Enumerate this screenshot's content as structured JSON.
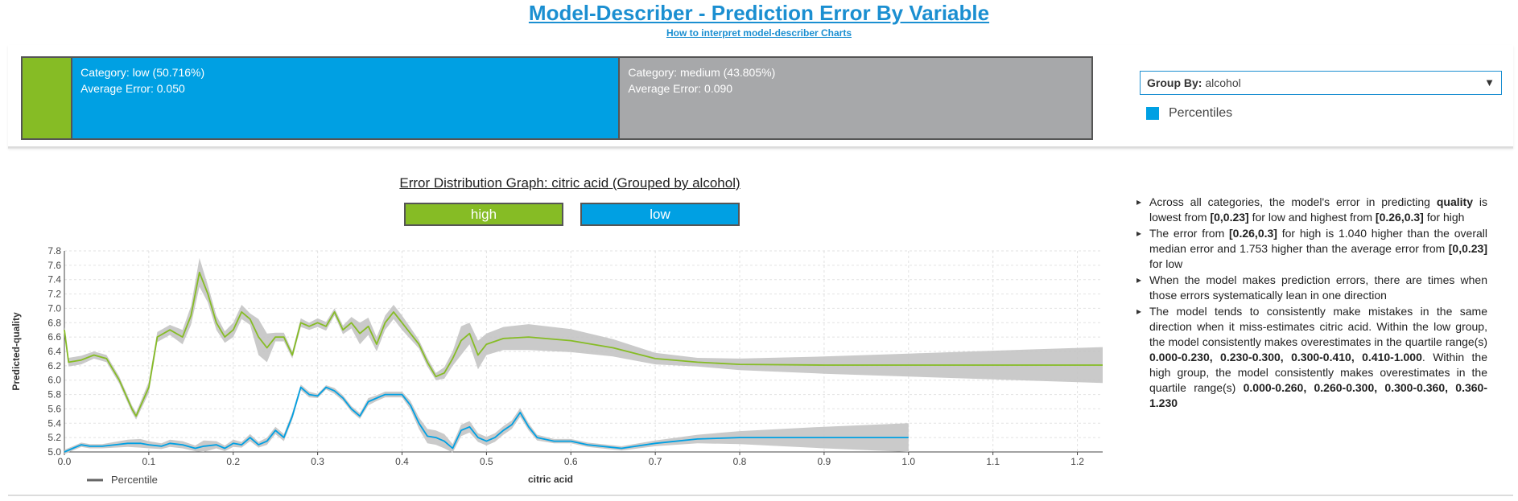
{
  "header": {
    "title": "Model-Describer - Prediction Error By Variable",
    "link": "How to interpret model-describer Charts"
  },
  "categories": [
    {
      "name": "high",
      "label": "",
      "error_label": "",
      "share": 4.479,
      "color": "#86bc25"
    },
    {
      "name": "low",
      "label": "Category: low (50.716%)",
      "error_label": "Average Error: 0.050",
      "share": 50.716,
      "color": "#00a0e3"
    },
    {
      "name": "medium",
      "label": "Category: medium (43.805%)",
      "error_label": "Average Error: 0.090",
      "share": 43.805,
      "color": "#a7a8aa"
    }
  ],
  "controls": {
    "groupby_label": "Group By:",
    "groupby_value": "alcohol",
    "percentiles_label": "Percentiles",
    "percentiles_color": "#00a0e3"
  },
  "chart_data": {
    "type": "line",
    "title": "Error Distribution Graph: citric acid (Grouped by alcohol)",
    "xlabel": "citric acid",
    "ylabel": "Predicted-quality",
    "xlim": [
      0.0,
      1.23
    ],
    "ylim": [
      5.0,
      7.8
    ],
    "xticks": [
      "0.0",
      "0.1",
      "0.2",
      "0.3",
      "0.4",
      "0.5",
      "0.6",
      "0.7",
      "0.8",
      "0.9",
      "1.0",
      "1.1",
      "1.2"
    ],
    "yticks": [
      "5.0",
      "5.2",
      "5.4",
      "5.6",
      "5.8",
      "6.0",
      "6.2",
      "6.4",
      "6.6",
      "6.8",
      "7.0",
      "7.2",
      "7.4",
      "7.6",
      "7.8"
    ],
    "grid": true,
    "legend": {
      "label": "Percentile",
      "placement": "bottom-left"
    },
    "series": [
      {
        "name": "high",
        "color": "#86bc25",
        "x": [
          0.0,
          0.005,
          0.02,
          0.035,
          0.05,
          0.065,
          0.08,
          0.085,
          0.1,
          0.11,
          0.125,
          0.14,
          0.15,
          0.16,
          0.17,
          0.18,
          0.19,
          0.2,
          0.21,
          0.22,
          0.23,
          0.24,
          0.25,
          0.26,
          0.27,
          0.28,
          0.29,
          0.3,
          0.31,
          0.32,
          0.33,
          0.34,
          0.35,
          0.36,
          0.37,
          0.38,
          0.39,
          0.4,
          0.41,
          0.42,
          0.43,
          0.44,
          0.45,
          0.46,
          0.47,
          0.48,
          0.49,
          0.5,
          0.52,
          0.55,
          0.6,
          0.65,
          0.7,
          0.75,
          0.8,
          0.9,
          1.0,
          1.1,
          1.23
        ],
        "y": [
          6.7,
          6.25,
          6.28,
          6.35,
          6.3,
          6.0,
          5.6,
          5.5,
          5.9,
          6.6,
          6.7,
          6.6,
          6.9,
          7.5,
          7.2,
          6.8,
          6.6,
          6.7,
          6.95,
          6.85,
          6.6,
          6.45,
          6.6,
          6.6,
          6.35,
          6.8,
          6.75,
          6.8,
          6.75,
          6.95,
          6.7,
          6.8,
          6.65,
          6.75,
          6.5,
          6.8,
          6.95,
          6.8,
          6.65,
          6.5,
          6.25,
          6.05,
          6.1,
          6.3,
          6.55,
          6.65,
          6.35,
          6.5,
          6.58,
          6.6,
          6.55,
          6.45,
          6.3,
          6.25,
          6.22,
          6.21,
          6.21,
          6.21,
          6.21
        ],
        "band": [
          0.04,
          0.06,
          0.06,
          0.05,
          0.05,
          0.05,
          0.05,
          0.05,
          0.08,
          0.07,
          0.07,
          0.1,
          0.13,
          0.2,
          0.12,
          0.1,
          0.08,
          0.1,
          0.1,
          0.08,
          0.25,
          0.2,
          0.06,
          0.06,
          0.05,
          0.06,
          0.05,
          0.06,
          0.06,
          0.05,
          0.06,
          0.08,
          0.15,
          0.12,
          0.1,
          0.1,
          0.1,
          0.1,
          0.08,
          0.06,
          0.06,
          0.05,
          0.08,
          0.1,
          0.2,
          0.15,
          0.2,
          0.15,
          0.16,
          0.18,
          0.16,
          0.12,
          0.08,
          0.06,
          0.08,
          0.12,
          0.16,
          0.2,
          0.25
        ]
      },
      {
        "name": "low",
        "color": "#00a0e3",
        "x": [
          0.0,
          0.01,
          0.02,
          0.03,
          0.045,
          0.06,
          0.075,
          0.09,
          0.1,
          0.115,
          0.125,
          0.14,
          0.155,
          0.165,
          0.18,
          0.19,
          0.2,
          0.21,
          0.22,
          0.23,
          0.24,
          0.25,
          0.26,
          0.27,
          0.28,
          0.29,
          0.3,
          0.31,
          0.32,
          0.33,
          0.34,
          0.35,
          0.36,
          0.37,
          0.38,
          0.39,
          0.4,
          0.41,
          0.42,
          0.43,
          0.44,
          0.45,
          0.46,
          0.47,
          0.48,
          0.49,
          0.5,
          0.51,
          0.52,
          0.53,
          0.54,
          0.55,
          0.56,
          0.58,
          0.6,
          0.62,
          0.66,
          0.7,
          0.75,
          0.8,
          0.9,
          1.0
        ],
        "y": [
          5.0,
          5.05,
          5.1,
          5.08,
          5.08,
          5.1,
          5.12,
          5.12,
          5.1,
          5.08,
          5.12,
          5.1,
          5.05,
          5.08,
          5.1,
          5.05,
          5.12,
          5.1,
          5.2,
          5.1,
          5.15,
          5.3,
          5.2,
          5.5,
          5.9,
          5.8,
          5.78,
          5.9,
          5.85,
          5.75,
          5.6,
          5.5,
          5.7,
          5.75,
          5.8,
          5.8,
          5.8,
          5.65,
          5.4,
          5.22,
          5.2,
          5.15,
          5.05,
          5.3,
          5.35,
          5.2,
          5.15,
          5.2,
          5.3,
          5.38,
          5.55,
          5.35,
          5.2,
          5.15,
          5.15,
          5.1,
          5.05,
          5.12,
          5.18,
          5.2,
          5.2,
          5.2
        ],
        "band": [
          0.03,
          0.03,
          0.03,
          0.03,
          0.03,
          0.04,
          0.05,
          0.06,
          0.05,
          0.04,
          0.05,
          0.05,
          0.04,
          0.08,
          0.05,
          0.04,
          0.05,
          0.04,
          0.05,
          0.04,
          0.05,
          0.05,
          0.05,
          0.05,
          0.04,
          0.04,
          0.03,
          0.03,
          0.04,
          0.04,
          0.04,
          0.04,
          0.05,
          0.04,
          0.04,
          0.04,
          0.04,
          0.06,
          0.08,
          0.1,
          0.1,
          0.1,
          0.06,
          0.08,
          0.08,
          0.06,
          0.06,
          0.06,
          0.06,
          0.06,
          0.06,
          0.05,
          0.04,
          0.03,
          0.03,
          0.03,
          0.03,
          0.04,
          0.06,
          0.09,
          0.15,
          0.2
        ]
      }
    ]
  },
  "notes": [
    {
      "parts": [
        {
          "t": "Across all categories, the model's error in predicting "
        },
        {
          "t": "quality",
          "b": true
        },
        {
          "t": " is lowest from "
        },
        {
          "t": "[0,0.23]",
          "b": true
        },
        {
          "t": " for low and highest from "
        },
        {
          "t": "[0.26,0.3]",
          "b": true
        },
        {
          "t": " for high"
        }
      ]
    },
    {
      "parts": [
        {
          "t": "The error from "
        },
        {
          "t": "[0.26,0.3]",
          "b": true
        },
        {
          "t": " for high is 1.040 higher than the overall median error and 1.753 higher than the average error from "
        },
        {
          "t": "[0,0.23]",
          "b": true
        },
        {
          "t": " for low"
        }
      ]
    },
    {
      "parts": [
        {
          "t": "When the model makes prediction errors, there are times when those errors systematically lean in one direction"
        }
      ]
    },
    {
      "parts": [
        {
          "t": "The model tends to consistently make mistakes in the same direction when it miss-estimates citric acid. Within the low group, the model consistently makes overestimates in the quartile range(s) "
        },
        {
          "t": "0.000-0.230, 0.230-0.300, 0.300-0.410, 0.410-1.000",
          "b": true
        },
        {
          "t": ". Within the high group, the model consistently makes overestimates in the quartile range(s) "
        },
        {
          "t": "0.000-0.260, 0.260-0.300, 0.300-0.360, 0.360-1.230",
          "b": true
        }
      ]
    }
  ]
}
